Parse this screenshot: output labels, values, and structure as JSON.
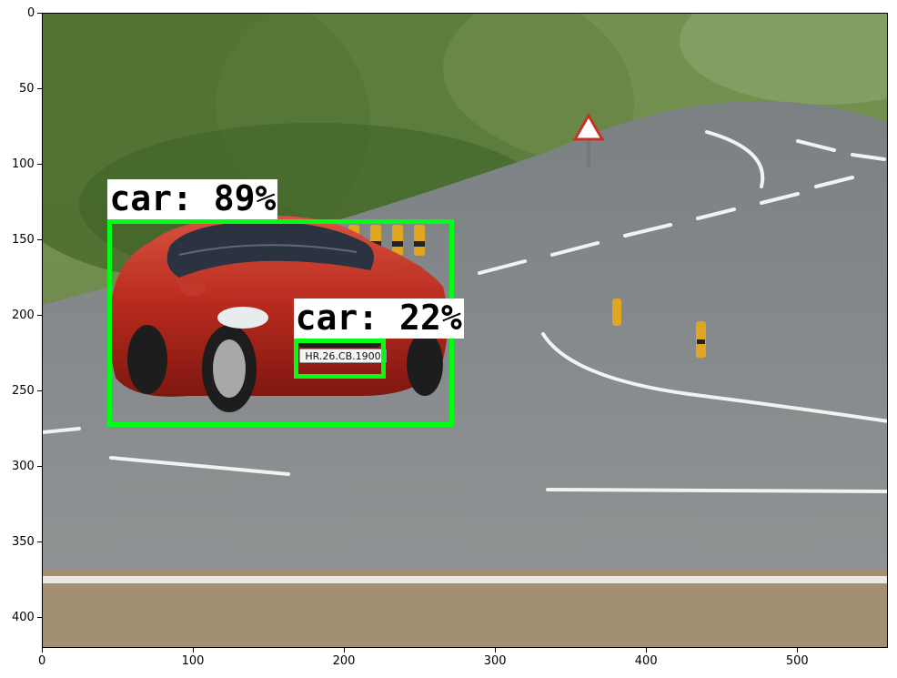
{
  "axes": {
    "xlim": [
      0,
      560
    ],
    "ylim": [
      420,
      0
    ],
    "x_ticks": [
      "0",
      "100",
      "200",
      "300",
      "400",
      "500"
    ],
    "y_ticks": [
      "0",
      "50",
      "100",
      "150",
      "200",
      "250",
      "300",
      "350",
      "400"
    ]
  },
  "detections": [
    {
      "label": "car: 89%",
      "class": "car",
      "score": 0.89,
      "box": {
        "x1": 43,
        "y1": 136,
        "x2": 272,
        "y2": 273
      }
    },
    {
      "label": "car: 22%",
      "class": "car",
      "score": 0.22,
      "box": {
        "x1": 166,
        "y1": 215,
        "x2": 227,
        "y2": 241
      }
    }
  ],
  "plate_text": "HR.26.CB.1900",
  "colors": {
    "box": "#00ff14",
    "label_bg": "#ffffff",
    "label_text": "#000000"
  }
}
